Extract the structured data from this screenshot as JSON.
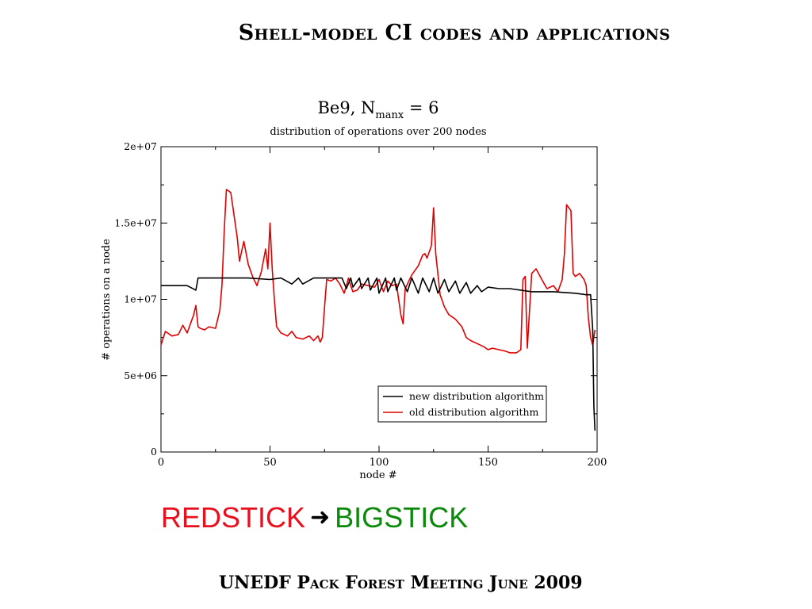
{
  "slide": {
    "title": "Shell-model CI codes and applications",
    "redstick": "REDSTICK",
    "arrow_icon": "arrow-right-icon",
    "bigstick": "BIGSTICK",
    "footer": "UNEDF Pack Forest Meeting June 2009"
  },
  "chart_data": {
    "type": "line",
    "title_main": "Be9, N",
    "title_sub": "manx",
    "title_eq": " = 6",
    "subtitle": "distribution of operations over 200 nodes",
    "xlabel": "node #",
    "ylabel": "# operations on a node",
    "xlim": [
      0,
      200
    ],
    "ylim": [
      0,
      20000000
    ],
    "x_ticks": [
      0,
      50,
      100,
      150,
      200
    ],
    "x_tick_labels": [
      "0",
      "50",
      "100",
      "150",
      "200"
    ],
    "y_ticks": [
      0,
      5000000,
      10000000,
      15000000,
      20000000
    ],
    "y_tick_labels": [
      "0",
      "5e+06",
      "1e+07",
      "1.5e+07",
      "2e+07"
    ],
    "legend_position": "lower-right",
    "series": [
      {
        "name": "new distribution algorithm",
        "color": "#000000",
        "x": [
          0,
          12,
          16,
          17,
          18,
          30,
          40,
          50,
          55,
          60,
          63,
          65,
          70,
          72,
          75,
          80,
          83,
          85,
          87,
          88,
          91,
          92,
          95,
          96,
          99,
          100,
          103,
          104,
          107,
          108,
          110,
          113,
          115,
          118,
          120,
          123,
          125,
          127,
          130,
          132,
          135,
          137,
          140,
          142,
          145,
          147,
          150,
          155,
          160,
          165,
          170,
          180,
          190,
          195,
          197,
          198,
          198.5,
          199
        ],
        "y": [
          10900000,
          10900000,
          10600000,
          11400000,
          11400000,
          11400000,
          11400000,
          11300000,
          11400000,
          11000000,
          11400000,
          11000000,
          11400000,
          11400000,
          11400000,
          11400000,
          11400000,
          10700000,
          11400000,
          10800000,
          11400000,
          10700000,
          11400000,
          10600000,
          11400000,
          10400000,
          11400000,
          10500000,
          11400000,
          10600000,
          11400000,
          10500000,
          11400000,
          10400000,
          11400000,
          10500000,
          11400000,
          10400000,
          11300000,
          10500000,
          11200000,
          10400000,
          11100000,
          10400000,
          10900000,
          10500000,
          10800000,
          10700000,
          10700000,
          10600000,
          10500000,
          10500000,
          10400000,
          10300000,
          10300000,
          8000000,
          3000000,
          1400000
        ]
      },
      {
        "name": "old distribution algorithm",
        "color": "#e00000",
        "x": [
          0,
          2,
          5,
          8,
          10,
          12,
          13,
          15,
          16,
          17,
          18,
          20,
          22,
          25,
          27,
          28,
          29,
          30,
          32,
          33,
          35,
          36,
          38,
          40,
          42,
          44,
          46,
          48,
          49,
          50,
          51,
          52,
          53,
          55,
          58,
          60,
          62,
          65,
          68,
          70,
          72,
          73,
          74,
          75,
          76,
          78,
          80,
          82,
          84,
          86,
          87,
          88,
          90,
          92,
          95,
          98,
          100,
          102,
          104,
          106,
          108,
          110,
          111,
          112,
          114,
          115,
          118,
          120,
          121,
          122,
          124,
          125,
          126,
          128,
          130,
          132,
          135,
          138,
          140,
          142,
          145,
          148,
          150,
          152,
          155,
          158,
          160,
          163,
          165,
          166,
          167,
          168,
          170,
          172,
          175,
          177,
          180,
          182,
          184,
          185,
          186,
          188,
          189,
          190,
          192,
          194,
          195,
          196,
          197,
          198,
          199
        ],
        "y": [
          7000000,
          7900000,
          7600000,
          7700000,
          8300000,
          7800000,
          8200000,
          9000000,
          9600000,
          8200000,
          8100000,
          8000000,
          8200000,
          8100000,
          9300000,
          11000000,
          14500000,
          17200000,
          17000000,
          16000000,
          14000000,
          12500000,
          13800000,
          12300000,
          11500000,
          10900000,
          11800000,
          13300000,
          12000000,
          15000000,
          12000000,
          10000000,
          8200000,
          7800000,
          7600000,
          7900000,
          7500000,
          7400000,
          7600000,
          7300000,
          7600000,
          7200000,
          7500000,
          9500000,
          11300000,
          11200000,
          11400000,
          11000000,
          10400000,
          11400000,
          10900000,
          10500000,
          10600000,
          11000000,
          10900000,
          10800000,
          11300000,
          10500000,
          11200000,
          10900000,
          11000000,
          9000000,
          8400000,
          10700000,
          11300000,
          11600000,
          12200000,
          12900000,
          13000000,
          12700000,
          13500000,
          16000000,
          13000000,
          10300000,
          9500000,
          9000000,
          8700000,
          8200000,
          7500000,
          7300000,
          7100000,
          6900000,
          6700000,
          6800000,
          6700000,
          6600000,
          6500000,
          6500000,
          6700000,
          11300000,
          11500000,
          6800000,
          11700000,
          12000000,
          11200000,
          10700000,
          10900000,
          10500000,
          11300000,
          13000000,
          16200000,
          15800000,
          11700000,
          11500000,
          11700000,
          11300000,
          10900000,
          8800000,
          7500000,
          7000000,
          8000000
        ]
      }
    ]
  }
}
